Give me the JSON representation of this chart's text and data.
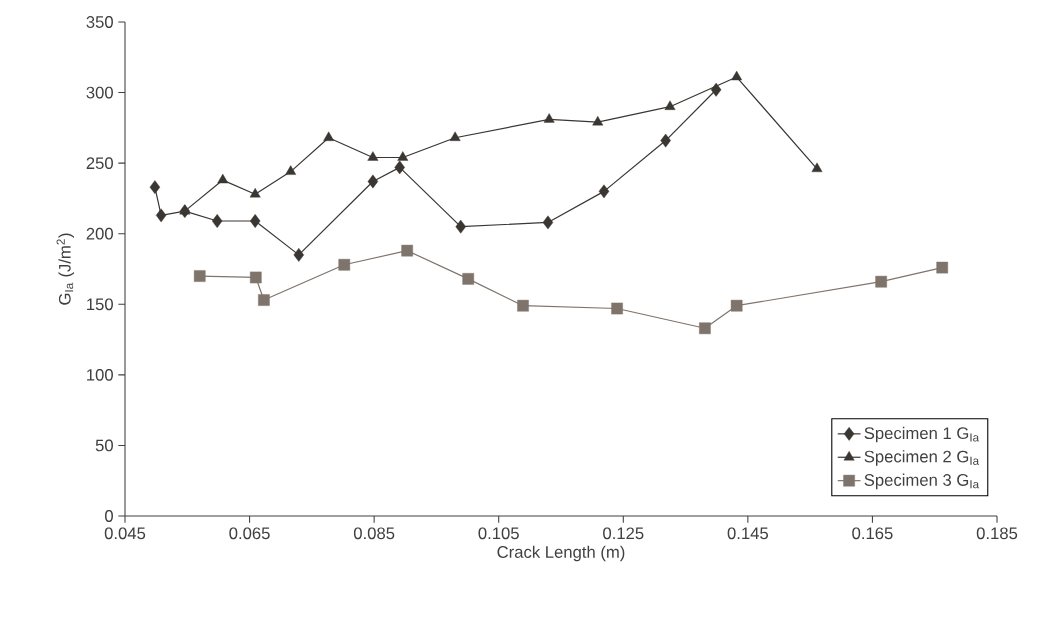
{
  "chart_data": {
    "type": "line",
    "xlabel": "Crack Length (m)",
    "ylabel": "G$_{Ia}$ (J/m$^{2}$)",
    "xlim": [
      0.045,
      0.185
    ],
    "xticks": [
      0.045,
      0.065,
      0.085,
      0.105,
      0.125,
      0.145,
      0.165,
      0.185
    ],
    "ylim": [
      0,
      350
    ],
    "yticks": [
      0,
      50,
      100,
      150,
      200,
      250,
      300,
      350
    ],
    "grid": false,
    "legend": "bottom right",
    "line_style": "solid",
    "series": [
      {
        "name": "Specimen 1 G$_{Ia}$",
        "color": "#3a3632",
        "marker": "diamond",
        "x": [
          0.0498,
          0.0508,
          0.0546,
          0.0598,
          0.0659,
          0.0729,
          0.0848,
          0.0891,
          0.0989,
          0.1129,
          0.1219,
          0.1318,
          0.1399
        ],
        "values": [
          233,
          213,
          216,
          209,
          209,
          185,
          237,
          247,
          205,
          208,
          230,
          266,
          302
        ]
      },
      {
        "name": "Specimen 2 G$_{Ia}$",
        "color": "#3a3632",
        "marker": "triangle",
        "x": [
          0.0546,
          0.0607,
          0.0659,
          0.0716,
          0.0777,
          0.0848,
          0.0896,
          0.098,
          0.1131,
          0.1209,
          0.1325,
          0.1432,
          0.1561
        ],
        "values": [
          216,
          238,
          228,
          244,
          268,
          254,
          254,
          268,
          281,
          279,
          290,
          311,
          246
        ]
      },
      {
        "name": "Specimen 3 G$_{Ia}$",
        "color": "#7f746b",
        "marker": "square",
        "x": [
          0.057,
          0.066,
          0.0673,
          0.0802,
          0.0903,
          0.1001,
          0.1089,
          0.124,
          0.1381,
          0.1432,
          0.1664,
          0.1762
        ],
        "values": [
          170,
          169,
          153,
          178,
          188,
          168,
          149,
          147,
          133,
          149,
          166,
          176
        ]
      }
    ]
  }
}
